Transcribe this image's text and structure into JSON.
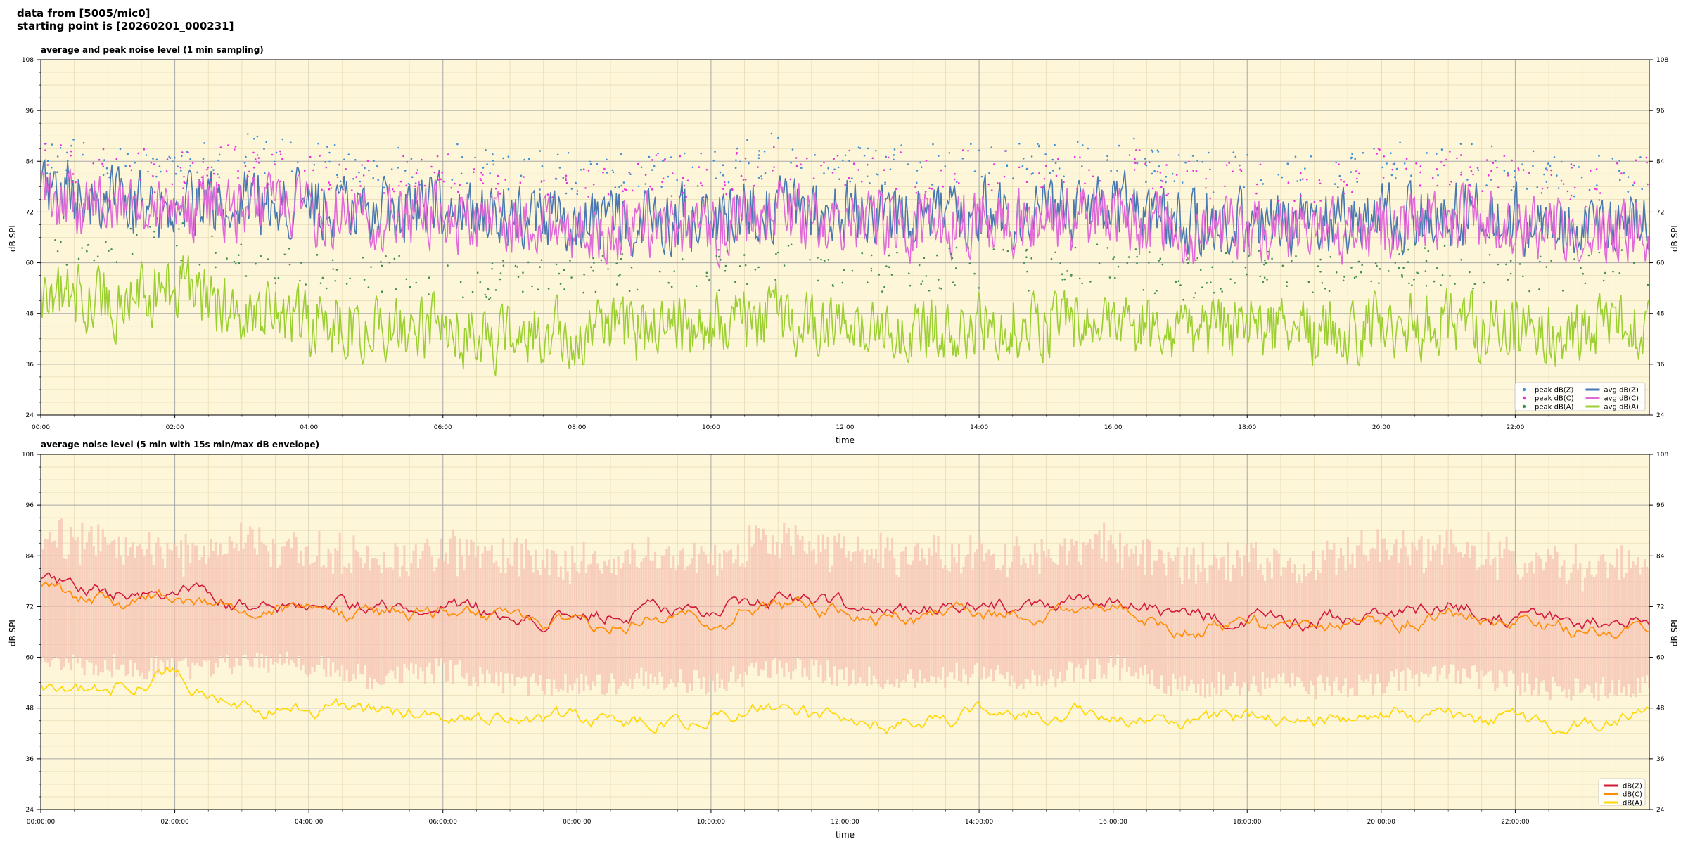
{
  "header": {
    "line1": "data from [5005/mic0]",
    "line2": "starting point is [20260201_000231]"
  },
  "chart_data": [
    {
      "type": "line",
      "title": "average and peak noise level (1 min sampling)",
      "xlabel": "time",
      "ylabel": "dB SPL",
      "ylim": [
        24,
        108
      ],
      "xlim_hours": [
        0,
        24
      ],
      "yticks": [
        "24",
        "36",
        "48",
        "60",
        "72",
        "84",
        "96",
        "108"
      ],
      "xticks": [
        "00:00",
        "02:00",
        "04:00",
        "06:00",
        "08:00",
        "10:00",
        "12:00",
        "14:00",
        "16:00",
        "18:00",
        "20:00",
        "22:00"
      ],
      "grid": true,
      "legend_position": "bottom-right",
      "background": "#fdf6d9",
      "series_legend": [
        {
          "name": "peak dB(Z)",
          "kind": "point",
          "color": "#3d8fd6"
        },
        {
          "name": "peak dB(C)",
          "kind": "point",
          "color": "#ee2de0"
        },
        {
          "name": "peak dB(A)",
          "kind": "point",
          "color": "#3f8f4f"
        },
        {
          "name": "avg dB(Z)",
          "kind": "line",
          "color": "#4a78b0"
        },
        {
          "name": "avg dB(C)",
          "kind": "line",
          "color": "#e06ad8"
        },
        {
          "name": "avg dB(A)",
          "kind": "line",
          "color": "#9ccf31"
        }
      ],
      "series": [
        {
          "name": "avg dB(Z)",
          "color": "#4a78b0",
          "x_hours": [
            0,
            1,
            2,
            3,
            4,
            5,
            6,
            7,
            8,
            9,
            10,
            11,
            12,
            13,
            14,
            15,
            16,
            17,
            18,
            19,
            20,
            21,
            22,
            23,
            24
          ],
          "values": [
            77,
            75,
            73,
            75,
            74,
            71,
            73,
            70,
            69,
            71,
            70,
            74,
            72,
            71,
            72,
            71,
            74,
            69,
            70,
            69,
            70,
            72,
            70,
            68,
            70
          ]
        },
        {
          "name": "avg dB(C)",
          "color": "#e06ad8",
          "x_hours": [
            0,
            1,
            2,
            3,
            4,
            5,
            6,
            7,
            8,
            9,
            10,
            11,
            12,
            13,
            14,
            15,
            16,
            17,
            18,
            19,
            20,
            21,
            22,
            23,
            24
          ],
          "values": [
            75,
            73,
            71,
            73,
            72,
            69,
            71,
            68,
            67,
            69,
            68,
            72,
            70,
            69,
            70,
            69,
            72,
            67,
            68,
            67,
            68,
            70,
            68,
            66,
            68
          ]
        },
        {
          "name": "avg dB(A)",
          "color": "#9ccf31",
          "x_hours": [
            0,
            1,
            2,
            3,
            4,
            5,
            6,
            7,
            8,
            9,
            10,
            11,
            12,
            13,
            14,
            15,
            16,
            17,
            18,
            19,
            20,
            21,
            22,
            23,
            24
          ],
          "values": [
            52,
            50,
            55,
            47,
            46,
            45,
            44,
            42,
            44,
            44,
            45,
            48,
            43,
            44,
            46,
            45,
            47,
            42,
            45,
            43,
            46,
            45,
            44,
            43,
            45
          ]
        },
        {
          "name": "peak dB(Z)",
          "color": "#3d8fd6",
          "x_hours": [
            0,
            1,
            2,
            3,
            4,
            5,
            6,
            7,
            8,
            9,
            10,
            11,
            12,
            13,
            14,
            15,
            16,
            17,
            18,
            19,
            20,
            21,
            22,
            23,
            24
          ],
          "values": [
            86,
            85,
            83,
            86,
            84,
            82,
            84,
            82,
            81,
            83,
            82,
            86,
            84,
            83,
            84,
            83,
            86,
            81,
            82,
            81,
            85,
            84,
            82,
            80,
            82
          ]
        },
        {
          "name": "peak dB(C)",
          "color": "#ee2de0",
          "x_hours": [
            0,
            1,
            2,
            3,
            4,
            5,
            6,
            7,
            8,
            9,
            10,
            11,
            12,
            13,
            14,
            15,
            16,
            17,
            18,
            19,
            20,
            21,
            22,
            23,
            24
          ],
          "values": [
            84,
            83,
            81,
            84,
            82,
            80,
            82,
            80,
            79,
            81,
            80,
            84,
            82,
            81,
            82,
            81,
            84,
            79,
            80,
            79,
            83,
            82,
            80,
            78,
            80
          ]
        },
        {
          "name": "peak dB(A)",
          "color": "#3f8f4f",
          "x_hours": [
            0,
            1,
            2,
            3,
            4,
            5,
            6,
            7,
            8,
            9,
            10,
            11,
            12,
            13,
            14,
            15,
            16,
            17,
            18,
            19,
            20,
            21,
            22,
            23,
            24
          ],
          "values": [
            64,
            62,
            66,
            60,
            59,
            58,
            57,
            56,
            58,
            57,
            58,
            61,
            57,
            58,
            59,
            58,
            60,
            56,
            59,
            57,
            60,
            59,
            58,
            57,
            59
          ]
        }
      ]
    },
    {
      "type": "line",
      "title": "average noise level (5 min with 15s min/max dB envelope)",
      "xlabel": "time",
      "ylabel": "dB SPL",
      "ylim": [
        24,
        108
      ],
      "xlim_hours": [
        0,
        24
      ],
      "yticks": [
        "24",
        "36",
        "48",
        "60",
        "72",
        "84",
        "96",
        "108"
      ],
      "xticks": [
        "00:00:00",
        "02:00:00",
        "04:00:00",
        "06:00:00",
        "08:00:00",
        "10:00:00",
        "12:00:00",
        "14:00:00",
        "16:00:00",
        "18:00:00",
        "20:00:00",
        "22:00:00"
      ],
      "grid": true,
      "legend_position": "bottom-right",
      "background": "#fdf6d9",
      "envelope": {
        "color": "#f6c2b3",
        "x_hours": [
          0,
          1,
          2,
          3,
          4,
          5,
          6,
          7,
          8,
          9,
          10,
          11,
          12,
          13,
          14,
          15,
          16,
          17,
          18,
          19,
          20,
          21,
          22,
          23,
          24
        ],
        "min": [
          62,
          61,
          60,
          62,
          61,
          58,
          60,
          57,
          56,
          58,
          57,
          61,
          59,
          58,
          59,
          58,
          61,
          56,
          57,
          56,
          57,
          59,
          57,
          55,
          57
        ],
        "max": [
          90,
          88,
          86,
          89,
          87,
          85,
          87,
          85,
          84,
          86,
          85,
          89,
          87,
          86,
          87,
          86,
          89,
          84,
          85,
          84,
          88,
          87,
          85,
          83,
          85
        ]
      },
      "series_legend": [
        {
          "name": "dB(Z)",
          "color": "#d31a3a"
        },
        {
          "name": "dB(C)",
          "color": "#ff8c00"
        },
        {
          "name": "dB(A)",
          "color": "#ffd700"
        }
      ],
      "series": [
        {
          "name": "dB(Z)",
          "color": "#d31a3a",
          "x_hours": [
            0,
            1,
            2,
            3,
            4,
            5,
            6,
            7,
            8,
            9,
            10,
            11,
            12,
            13,
            14,
            15,
            16,
            17,
            18,
            19,
            20,
            21,
            22,
            23,
            24
          ],
          "values": [
            78,
            75,
            76,
            72,
            73,
            71,
            73,
            70,
            69,
            71,
            70,
            74,
            72,
            71,
            72,
            71,
            74,
            69,
            70,
            69,
            70,
            72,
            70,
            68,
            70
          ]
        },
        {
          "name": "dB(C)",
          "color": "#ff8c00",
          "x_hours": [
            0,
            1,
            2,
            3,
            4,
            5,
            6,
            7,
            8,
            9,
            10,
            11,
            12,
            13,
            14,
            15,
            16,
            17,
            18,
            19,
            20,
            21,
            22,
            23,
            24
          ],
          "values": [
            76,
            73,
            74,
            70,
            71,
            69,
            71,
            68,
            67,
            69,
            68,
            72,
            70,
            69,
            70,
            69,
            72,
            67,
            68,
            67,
            68,
            70,
            68,
            66,
            68
          ]
        },
        {
          "name": "dB(A)",
          "color": "#ffd700",
          "x_hours": [
            0,
            1,
            2,
            3,
            4,
            5,
            6,
            7,
            8,
            9,
            10,
            11,
            12,
            13,
            14,
            15,
            16,
            17,
            18,
            19,
            20,
            21,
            22,
            23,
            24
          ],
          "values": [
            53,
            51,
            56,
            48,
            48,
            47,
            46,
            44,
            46,
            45,
            46,
            49,
            44,
            45,
            47,
            46,
            48,
            43,
            46,
            44,
            47,
            46,
            45,
            44,
            46
          ]
        }
      ]
    }
  ]
}
